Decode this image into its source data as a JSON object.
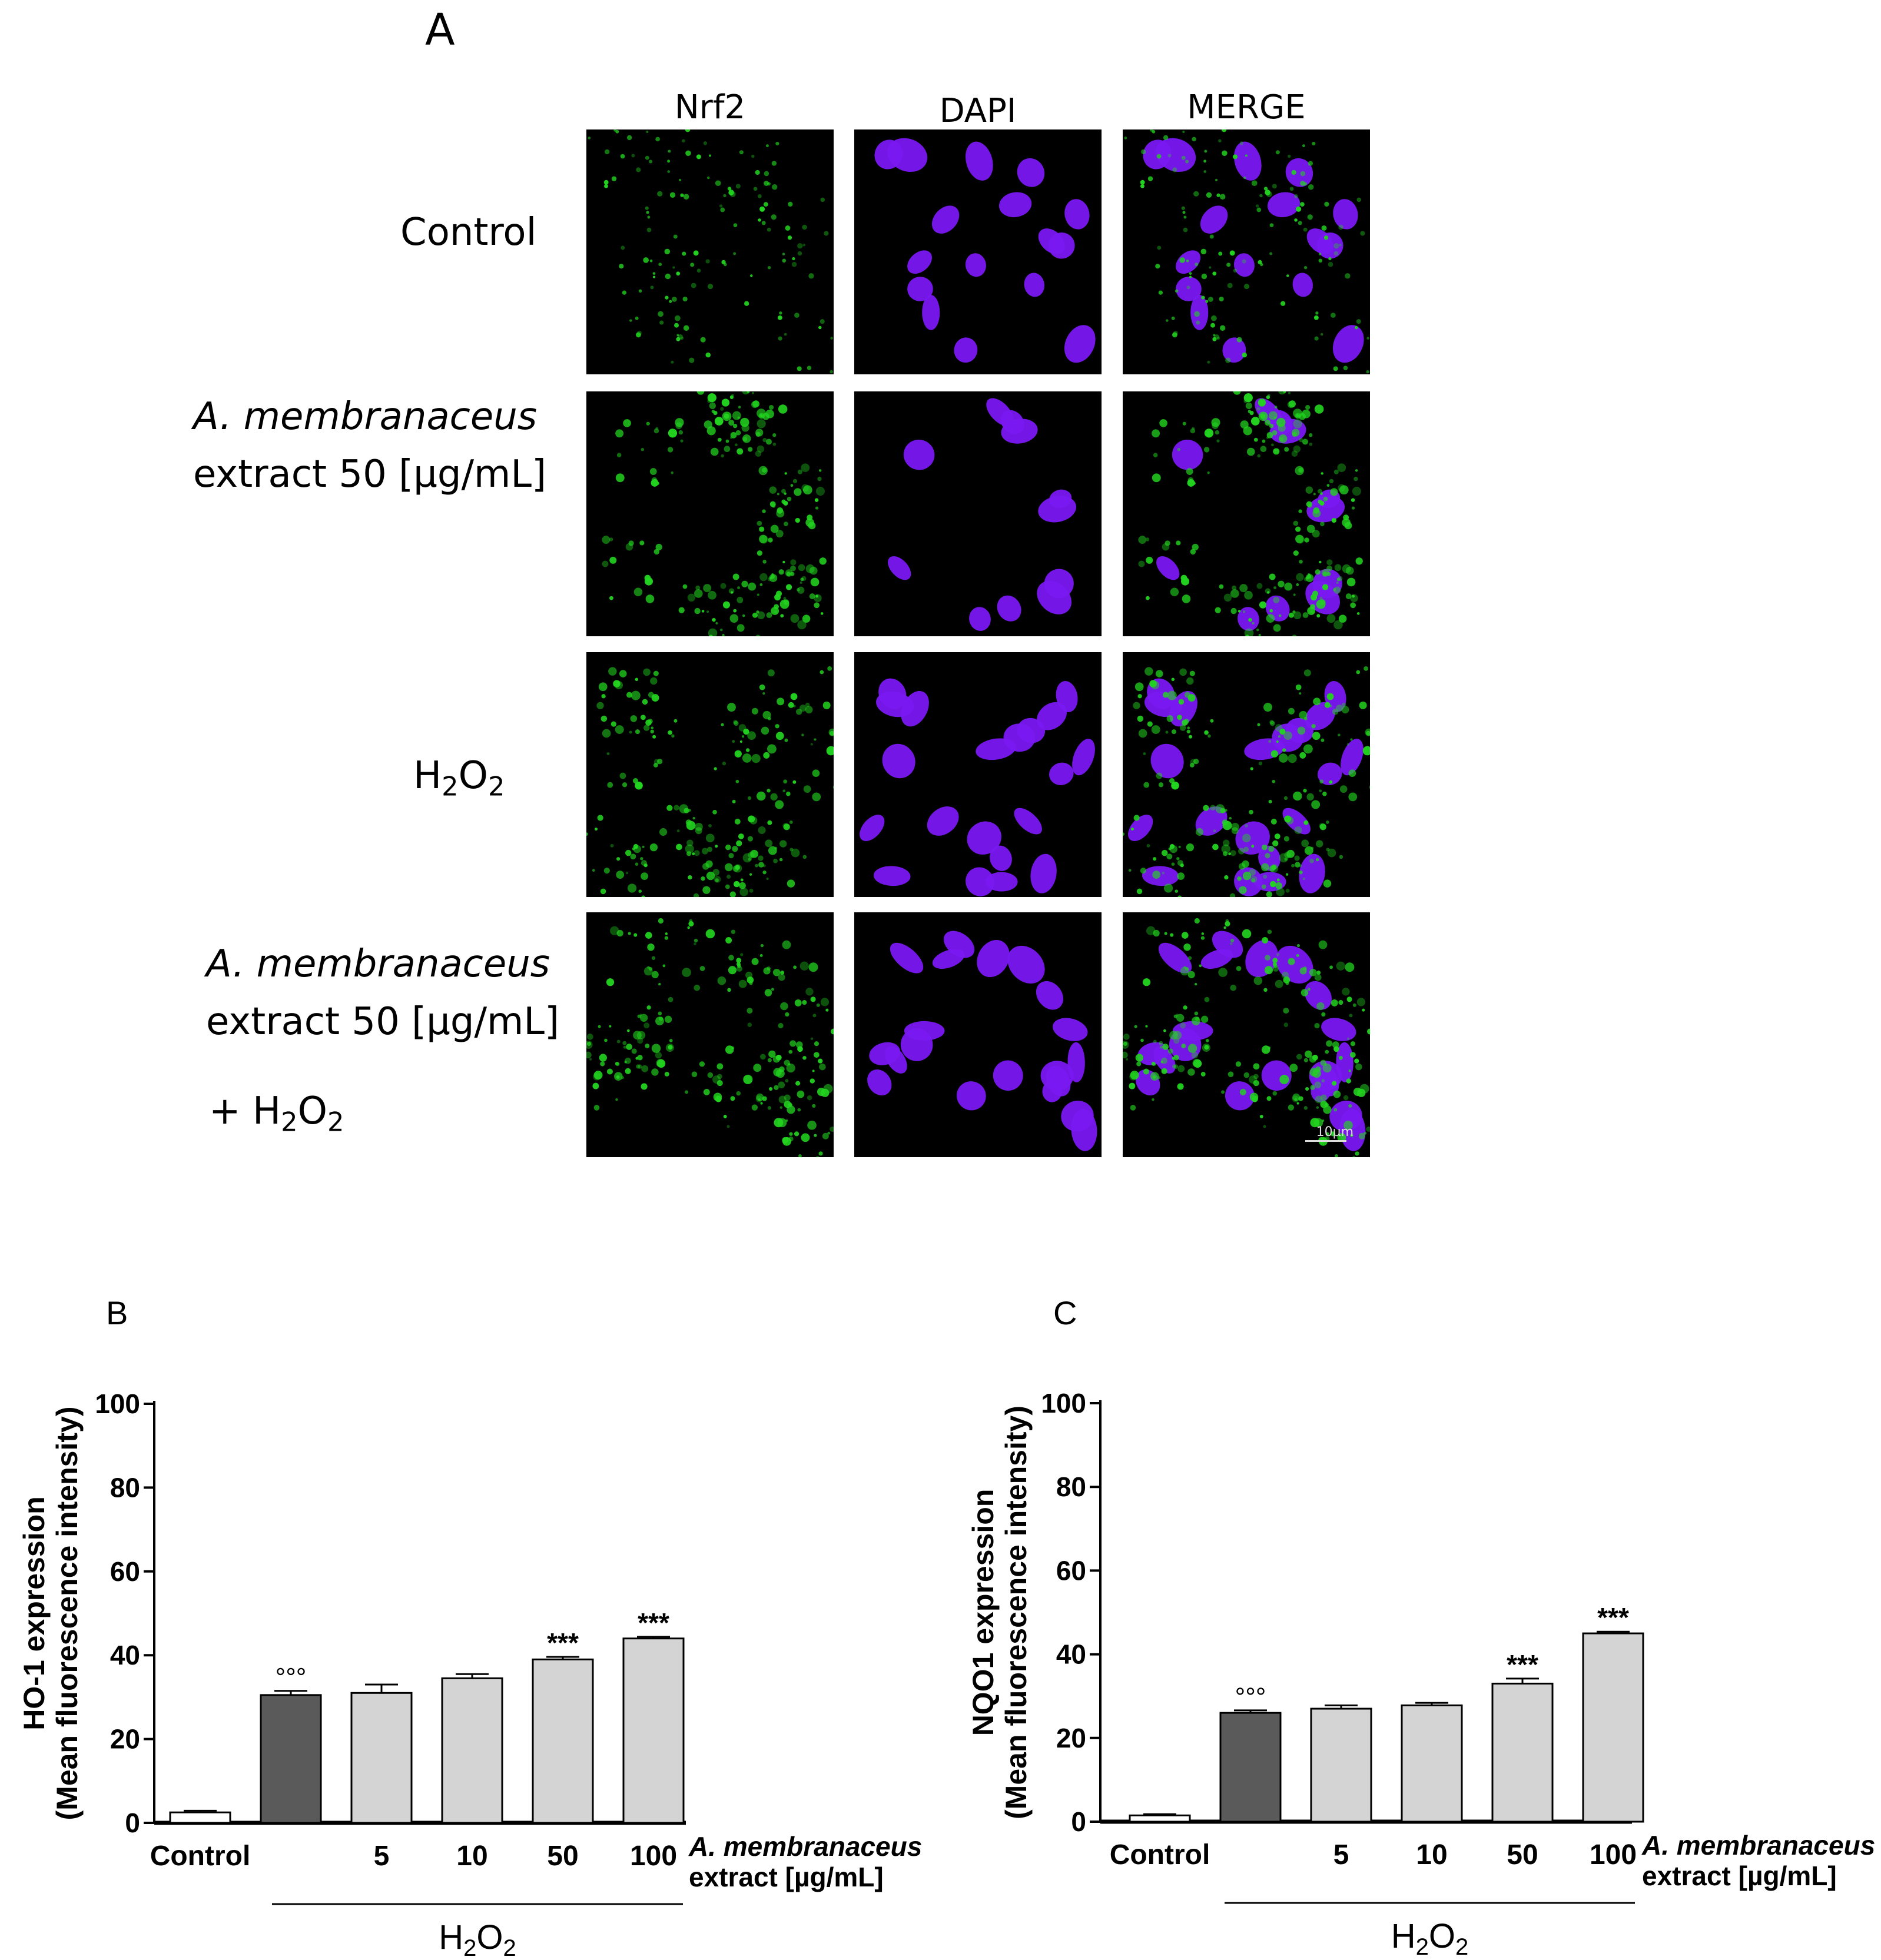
{
  "panelA": {
    "letter": "A",
    "columns": [
      "Nrf2",
      "DAPI",
      "MERGE"
    ],
    "rows": [
      {
        "line1": "Control",
        "line1_italic": false,
        "line2": "",
        "line3": ""
      },
      {
        "line1": "A. membranaceus",
        "line1_italic": true,
        "line2": "extract 50 [µg/mL]",
        "line3": ""
      },
      {
        "line1": "H2O2",
        "line1_italic": false,
        "line2": "",
        "line3": ""
      },
      {
        "line1": "A. membranaceus",
        "line1_italic": true,
        "line2": "extract 50 [µg/mL]",
        "line3": "+ H2O2"
      }
    ],
    "scale_bar": "10µm",
    "colors": {
      "nrf2": "#22d41f",
      "dapi": "#7a18f2",
      "background": "#000000"
    }
  },
  "chart_data": [
    {
      "panel": "B",
      "type": "bar",
      "ylabel_line1": "HO-1 expression",
      "ylabel_line2": "(Mean fluorescence intensity)",
      "categories": [
        "Control",
        "",
        "5",
        "10",
        "50",
        "100"
      ],
      "values": [
        2.5,
        30.5,
        31,
        34.5,
        39,
        44
      ],
      "errors": [
        0.4,
        1.0,
        2.0,
        1.0,
        0.6,
        0.4
      ],
      "annotations": [
        "",
        "°°°",
        "",
        "",
        "***",
        "***"
      ],
      "bar_colors": [
        "#ffffff",
        "#5a5a5a",
        "#d4d4d4",
        "#d4d4d4",
        "#d4d4d4",
        "#d4d4d4"
      ],
      "xlabel_line1": "A. membranaceus",
      "xlabel_line2": "extract [µg/mL]",
      "group_label": "H2O2",
      "yticks": [
        0,
        20,
        40,
        60,
        80,
        100
      ],
      "ylim": [
        0,
        100
      ]
    },
    {
      "panel": "C",
      "type": "bar",
      "ylabel_line1": "NQO1 expression",
      "ylabel_line2": "(Mean fluorescence intensity)",
      "categories": [
        "Control",
        "",
        "5",
        "10",
        "50",
        "100"
      ],
      "values": [
        1.5,
        26,
        27,
        27.8,
        33,
        45
      ],
      "errors": [
        0.3,
        0.6,
        0.8,
        0.6,
        1.2,
        0.4
      ],
      "annotations": [
        "",
        "°°°",
        "",
        "",
        "***",
        "***"
      ],
      "bar_colors": [
        "#ffffff",
        "#5a5a5a",
        "#d4d4d4",
        "#d4d4d4",
        "#d4d4d4",
        "#d4d4d4"
      ],
      "xlabel_line1": "A. membranaceus",
      "xlabel_line2": "extract [µg/mL]",
      "group_label": "H2O2",
      "yticks": [
        0,
        20,
        40,
        60,
        80,
        100
      ],
      "ylim": [
        0,
        100
      ]
    }
  ]
}
